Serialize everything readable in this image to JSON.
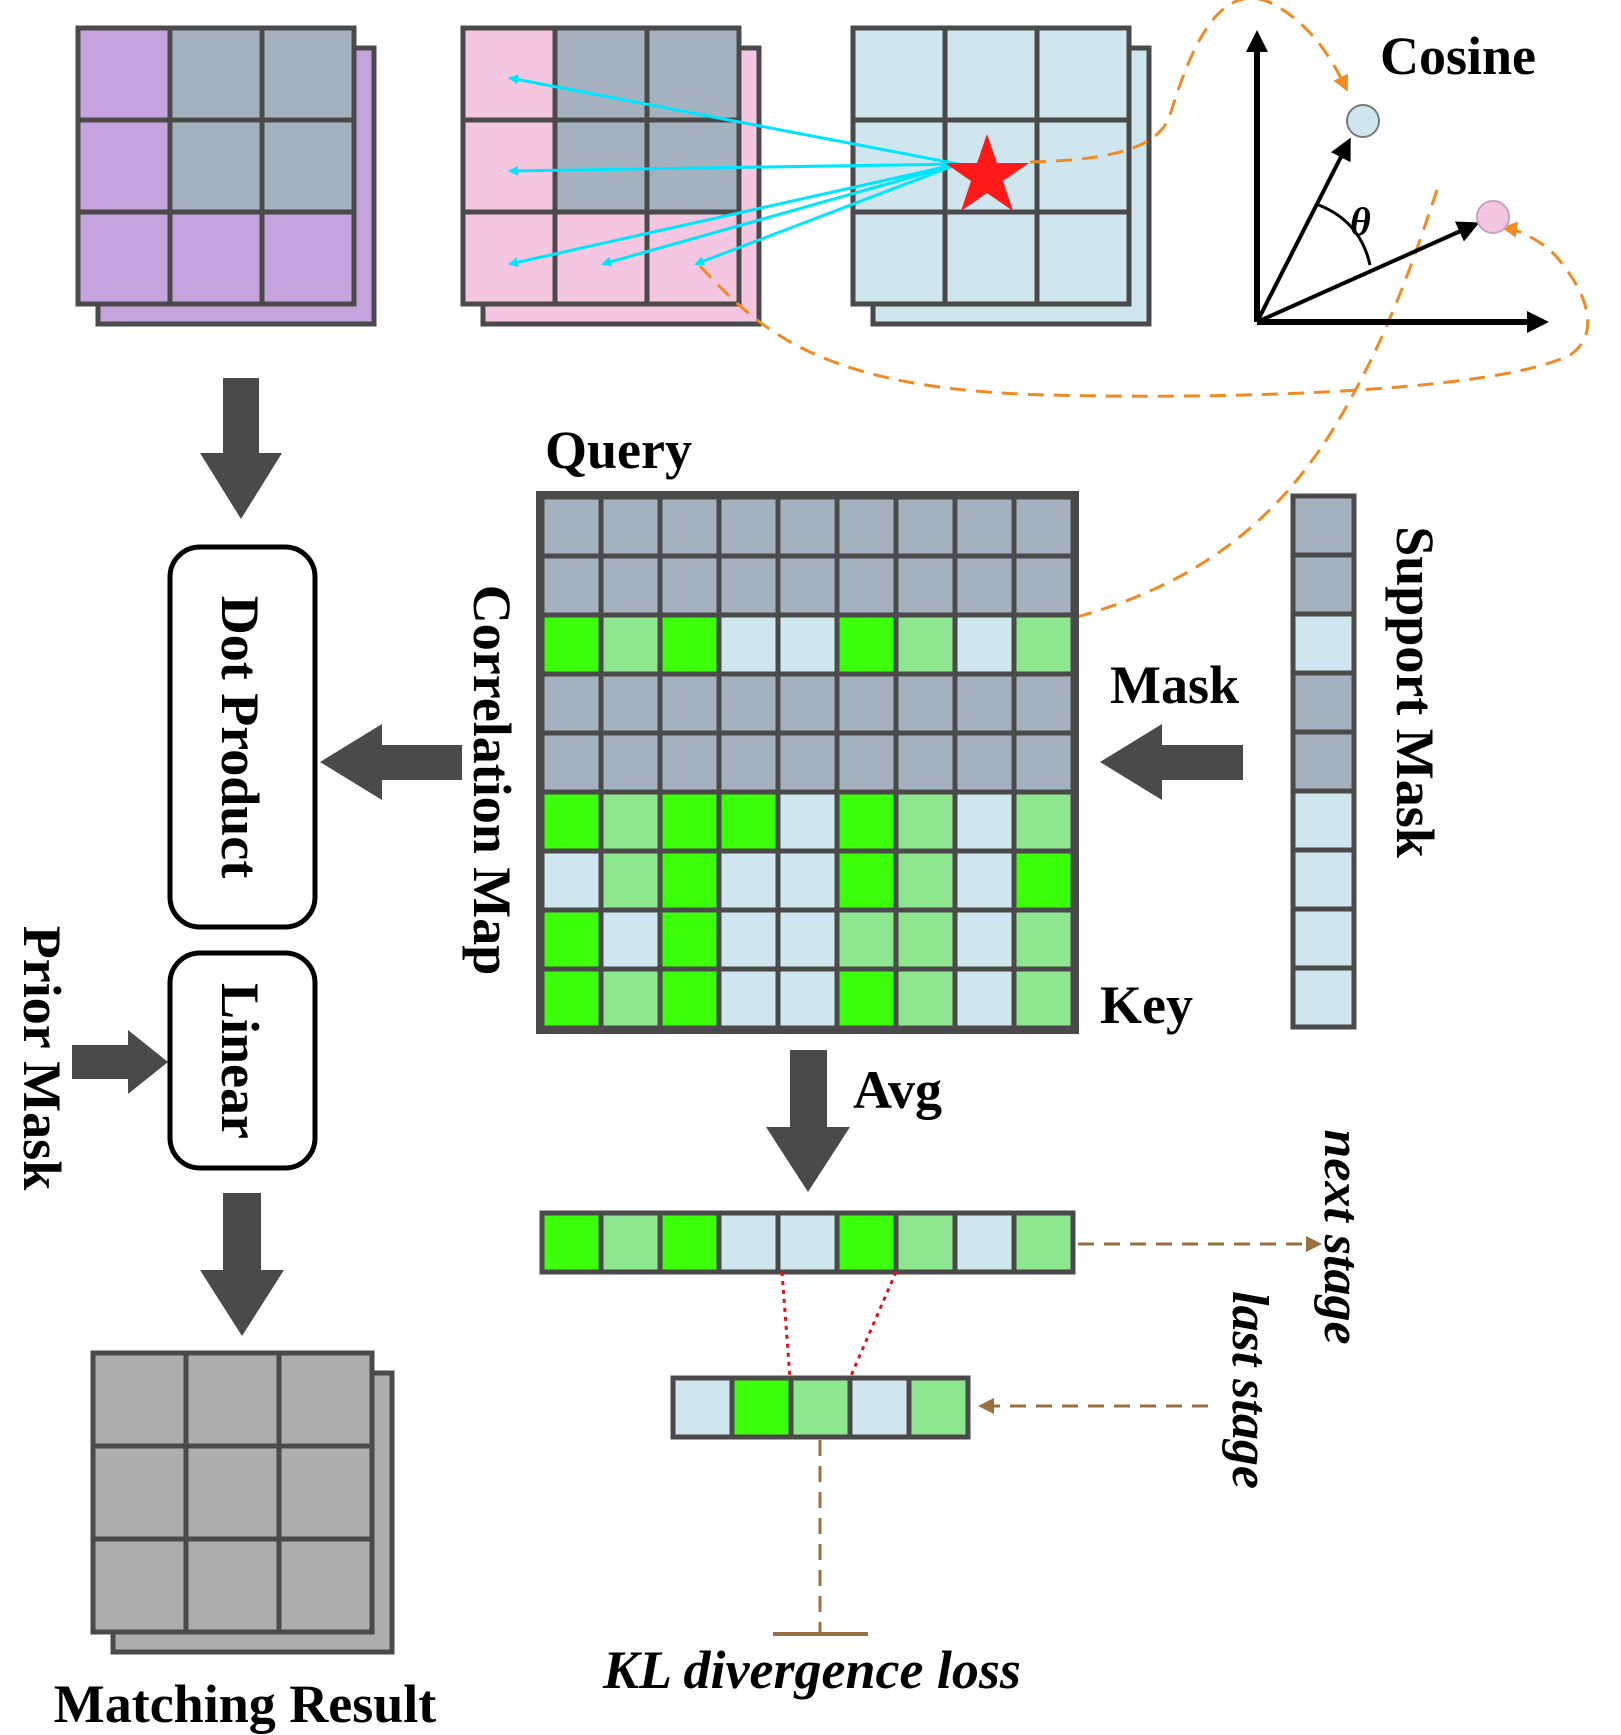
{
  "labels": {
    "cosine": "Cosine",
    "theta": "θ",
    "query": "Query",
    "key": "Key",
    "mask": "Mask",
    "support_mask": "Support Mask",
    "correlation_map": "Correlation Map",
    "dot_product": "Dot Product",
    "linear": "Linear",
    "prior_mask": "Prior Mask",
    "avg": "Avg",
    "next_stage": "next stage",
    "last_stage": "last stage",
    "kl_loss": "KL divergence loss",
    "matching_result": "Matching Result"
  },
  "colors": {
    "purple": "#c5a3dd",
    "pink": "#f5c6e0",
    "lightblue": "#cfe6ee",
    "gray": "#a6b1c0",
    "green": "#3cff0a",
    "lightgreen": "#8ee68e",
    "result_gray": "#adadad",
    "grid_stroke": "#4a4a4a",
    "arrow": "#4a4a4a",
    "cyan": "#00e5ff",
    "orange": "#f08a24",
    "brown": "#9a7040",
    "red_star": "#ff1a1a",
    "red_dot": "#e0101a"
  },
  "grids": {
    "purple_feature": [
      [
        "P",
        "G",
        "G"
      ],
      [
        "P",
        "G",
        "G"
      ],
      [
        "P",
        "P",
        "P"
      ]
    ],
    "pink_feature": [
      [
        "K",
        "G",
        "G"
      ],
      [
        "K",
        "G",
        "G"
      ],
      [
        "K",
        "K",
        "K"
      ]
    ],
    "blue_feature": [
      [
        "B",
        "B",
        "B"
      ],
      [
        "B",
        "B",
        "B"
      ],
      [
        "B",
        "B",
        "B"
      ]
    ],
    "correlation_map": [
      [
        "G",
        "G",
        "G",
        "G",
        "G",
        "G",
        "G",
        "G",
        "G"
      ],
      [
        "G",
        "G",
        "G",
        "G",
        "G",
        "G",
        "G",
        "G",
        "G"
      ],
      [
        "N",
        "L",
        "N",
        "B",
        "B",
        "N",
        "L",
        "B",
        "L"
      ],
      [
        "G",
        "G",
        "G",
        "G",
        "G",
        "G",
        "G",
        "G",
        "G"
      ],
      [
        "G",
        "G",
        "G",
        "G",
        "G",
        "G",
        "G",
        "G",
        "G"
      ],
      [
        "N",
        "L",
        "N",
        "N",
        "B",
        "N",
        "L",
        "B",
        "L"
      ],
      [
        "B",
        "L",
        "N",
        "B",
        "B",
        "N",
        "L",
        "B",
        "N"
      ],
      [
        "N",
        "B",
        "N",
        "B",
        "B",
        "L",
        "L",
        "B",
        "L"
      ],
      [
        "N",
        "L",
        "N",
        "B",
        "B",
        "N",
        "L",
        "B",
        "L"
      ]
    ],
    "support_mask": [
      "G",
      "G",
      "B",
      "G",
      "G",
      "B",
      "B",
      "B",
      "B"
    ],
    "avg_row": [
      "N",
      "L",
      "N",
      "B",
      "B",
      "N",
      "L",
      "B",
      "L"
    ],
    "last_stage_row": [
      "B",
      "N",
      "L",
      "B",
      "L"
    ]
  }
}
